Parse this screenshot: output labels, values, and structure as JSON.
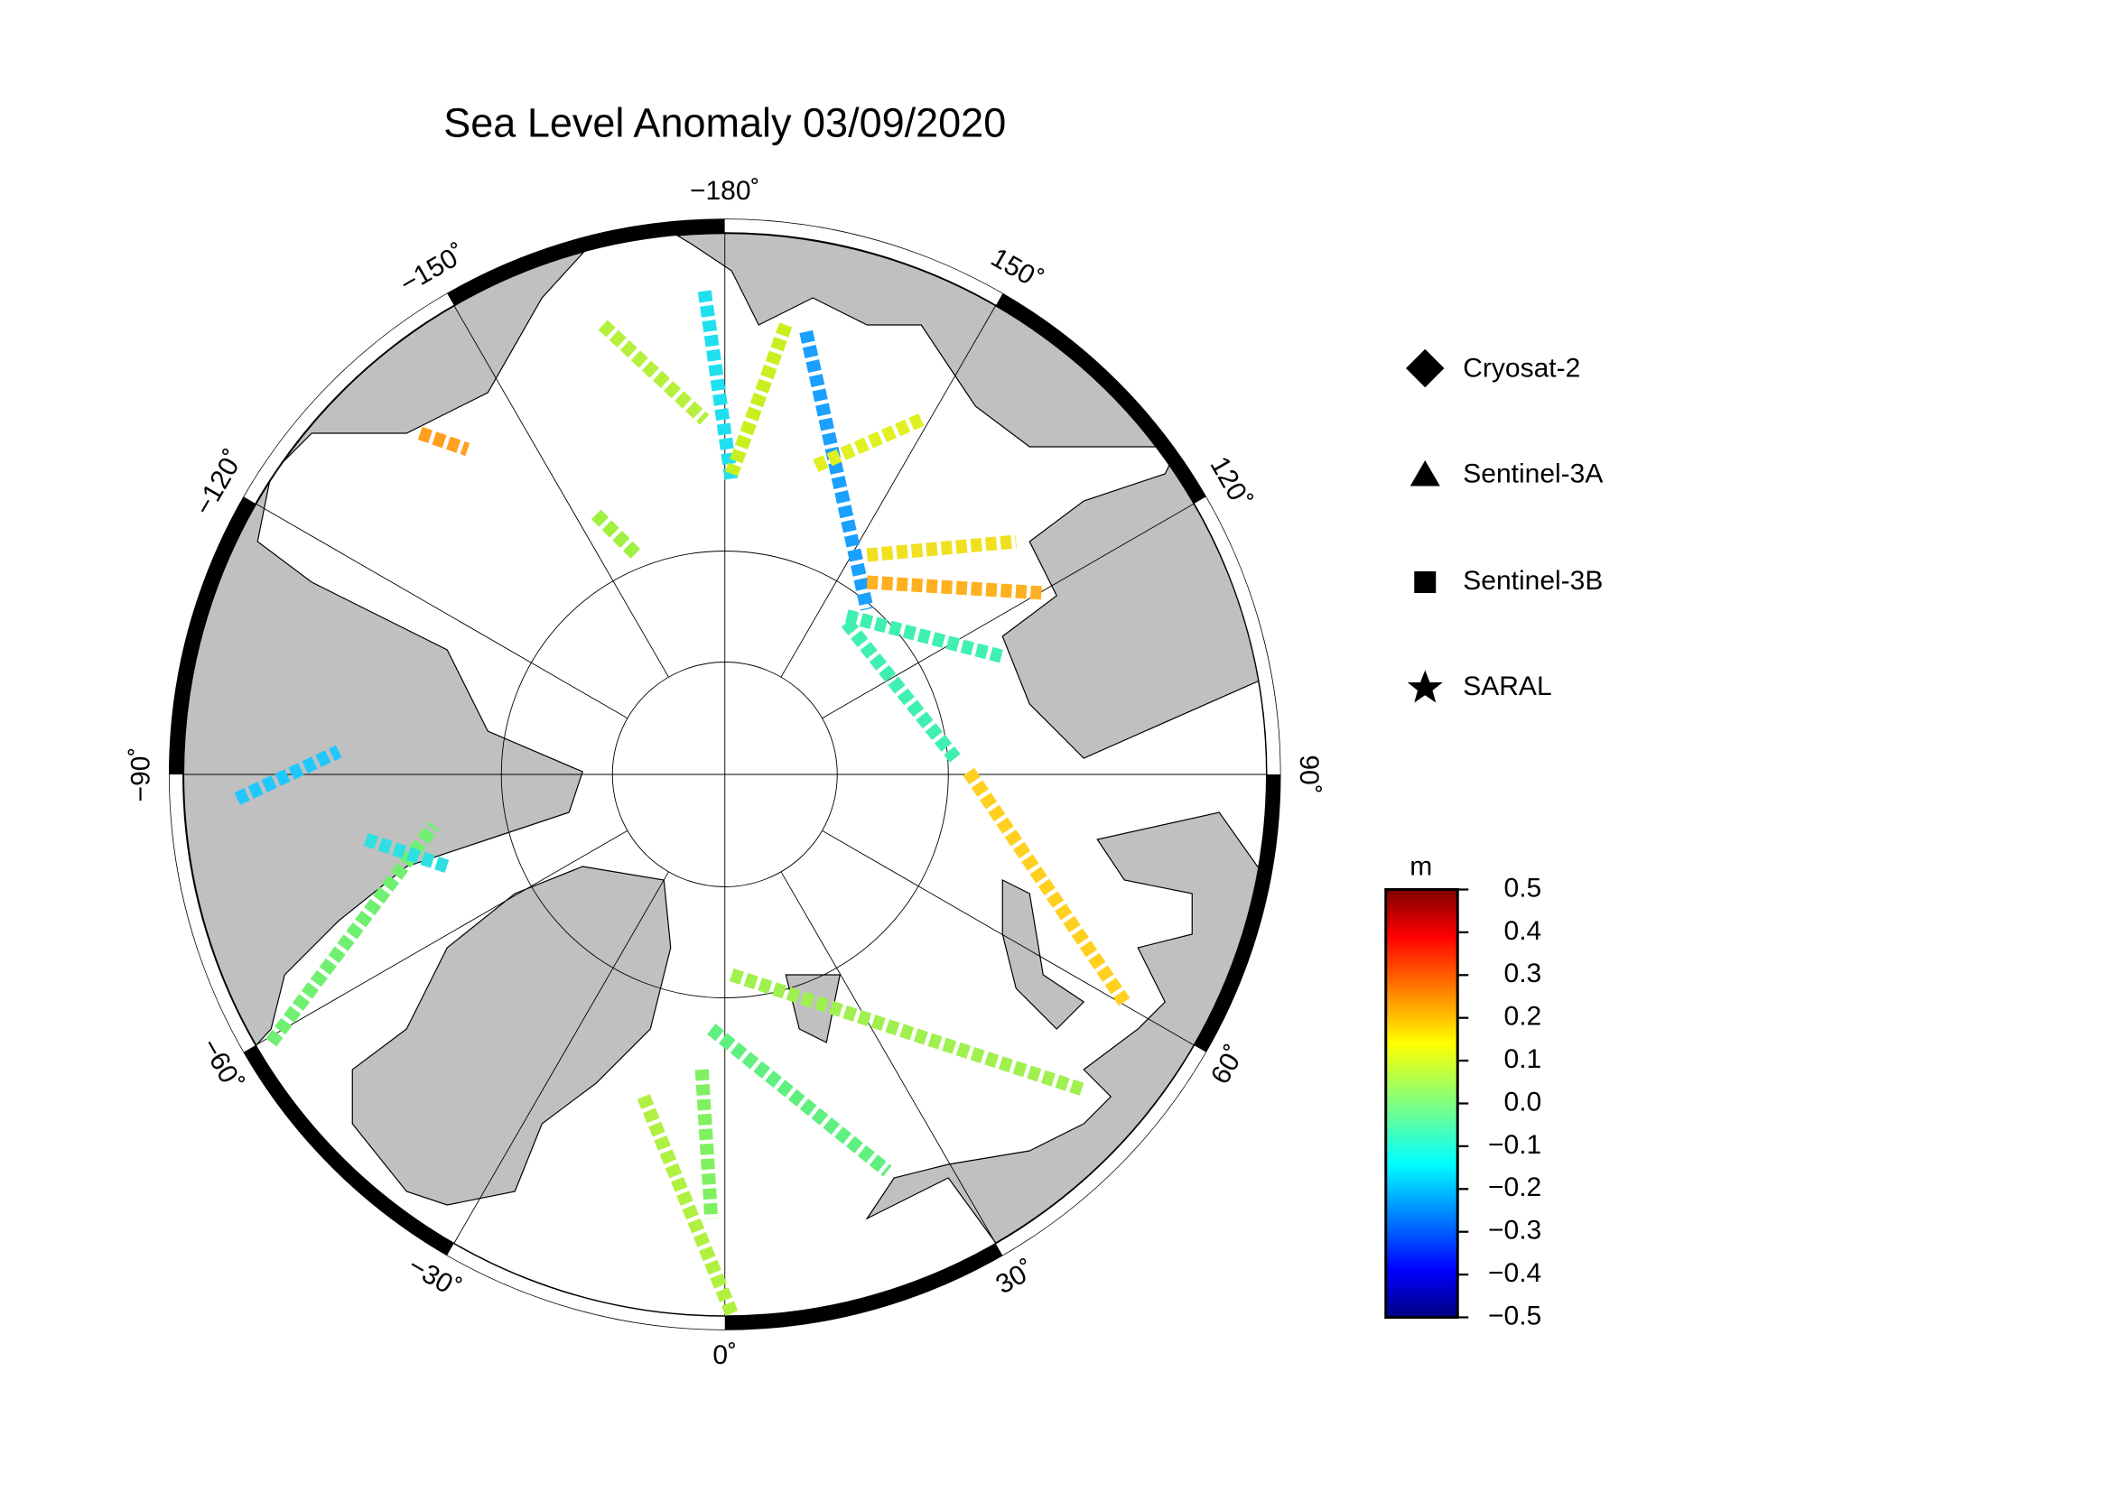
{
  "map": {
    "title": "Sea Level Anomaly 03/09/2020",
    "lon_ticks": [
      {
        "value": -180,
        "label": "−180˚"
      },
      {
        "value": 150,
        "label": "150˚"
      },
      {
        "value": 120,
        "label": "120˚"
      },
      {
        "value": 90,
        "label": "90˚"
      },
      {
        "value": 60,
        "label": "60˚"
      },
      {
        "value": 30,
        "label": "30˚"
      },
      {
        "value": 0,
        "label": "0˚"
      },
      {
        "value": -30,
        "label": "−30˚"
      },
      {
        "value": -60,
        "label": "−60˚"
      },
      {
        "value": -90,
        "label": "−90˚"
      },
      {
        "value": -120,
        "label": "−120˚"
      },
      {
        "value": -150,
        "label": "−150˚"
      }
    ],
    "legend": [
      "Cryosat-2",
      "Sentinel-3A",
      "Sentinel-3B",
      "SARAL"
    ],
    "colorbar": {
      "unit": "m",
      "clim": [
        -0.5,
        0.5
      ],
      "ticks": [
        0.5,
        0.4,
        0.3,
        0.2,
        0.1,
        {
          "value": 0,
          "label": "0.0"
        },
        {
          "value": -0.1,
          "label": "−0.1"
        },
        {
          "value": -0.2,
          "label": "−0.2"
        },
        {
          "value": -0.3,
          "label": "−0.3"
        },
        {
          "value": -0.4,
          "label": "−0.4"
        },
        {
          "value": -0.5,
          "label": "−0.5"
        }
      ]
    }
  }
}
